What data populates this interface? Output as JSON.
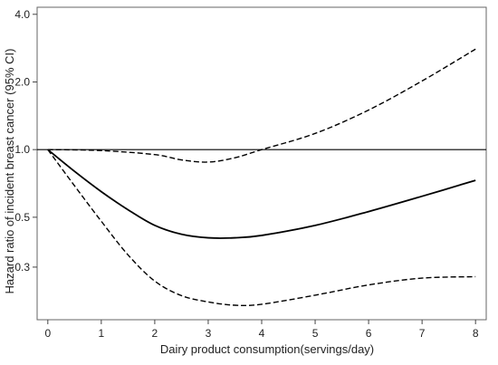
{
  "chart_data": {
    "type": "line",
    "title": "",
    "xlabel": "Dairy product consumption(servings/day)",
    "ylabel": "Hazard ratio of incident breast cancer (95% CI)",
    "xlim": [
      -0.2,
      8.2
    ],
    "ylim": [
      0.175,
      4.3
    ],
    "y_scale": "log",
    "x_ticks": [
      0,
      1,
      2,
      3,
      4,
      5,
      6,
      7,
      8
    ],
    "x_tick_labels": [
      "0",
      "1",
      "2",
      "3",
      "4",
      "5",
      "6",
      "7",
      "8"
    ],
    "y_ticks": [
      0.3,
      0.5,
      1.0,
      2.0,
      4.0
    ],
    "y_tick_labels": [
      "0.3",
      "0.5",
      "1.0",
      "2.0",
      "4.0"
    ],
    "reference_line_y": 1.0,
    "legend": "none",
    "grid": false,
    "series": [
      {
        "style": "solid",
        "color": "#000000",
        "points": [
          [
            0,
            1.0
          ],
          [
            0.5,
            0.8
          ],
          [
            1,
            0.65
          ],
          [
            1.5,
            0.54
          ],
          [
            2,
            0.46
          ],
          [
            2.5,
            0.42
          ],
          [
            3,
            0.405
          ],
          [
            3.5,
            0.405
          ],
          [
            4,
            0.415
          ],
          [
            5,
            0.46
          ],
          [
            6,
            0.53
          ],
          [
            7,
            0.62
          ],
          [
            8,
            0.73
          ]
        ]
      },
      {
        "style": "dashed",
        "color": "#000000",
        "points": [
          [
            0,
            1.0
          ],
          [
            1,
            0.99
          ],
          [
            2,
            0.95
          ],
          [
            2.5,
            0.9
          ],
          [
            3,
            0.88
          ],
          [
            3.5,
            0.92
          ],
          [
            4,
            1.0
          ],
          [
            5,
            1.18
          ],
          [
            6,
            1.5
          ],
          [
            7,
            2.02
          ],
          [
            8,
            2.8
          ]
        ]
      },
      {
        "style": "dashed",
        "color": "#000000",
        "points": [
          [
            0,
            1.0
          ],
          [
            0.5,
            0.69
          ],
          [
            1,
            0.48
          ],
          [
            1.5,
            0.34
          ],
          [
            2,
            0.26
          ],
          [
            2.5,
            0.224
          ],
          [
            3,
            0.21
          ],
          [
            3.5,
            0.203
          ],
          [
            4,
            0.205
          ],
          [
            5,
            0.225
          ],
          [
            6,
            0.25
          ],
          [
            7,
            0.268
          ],
          [
            8,
            0.272
          ]
        ]
      }
    ]
  }
}
